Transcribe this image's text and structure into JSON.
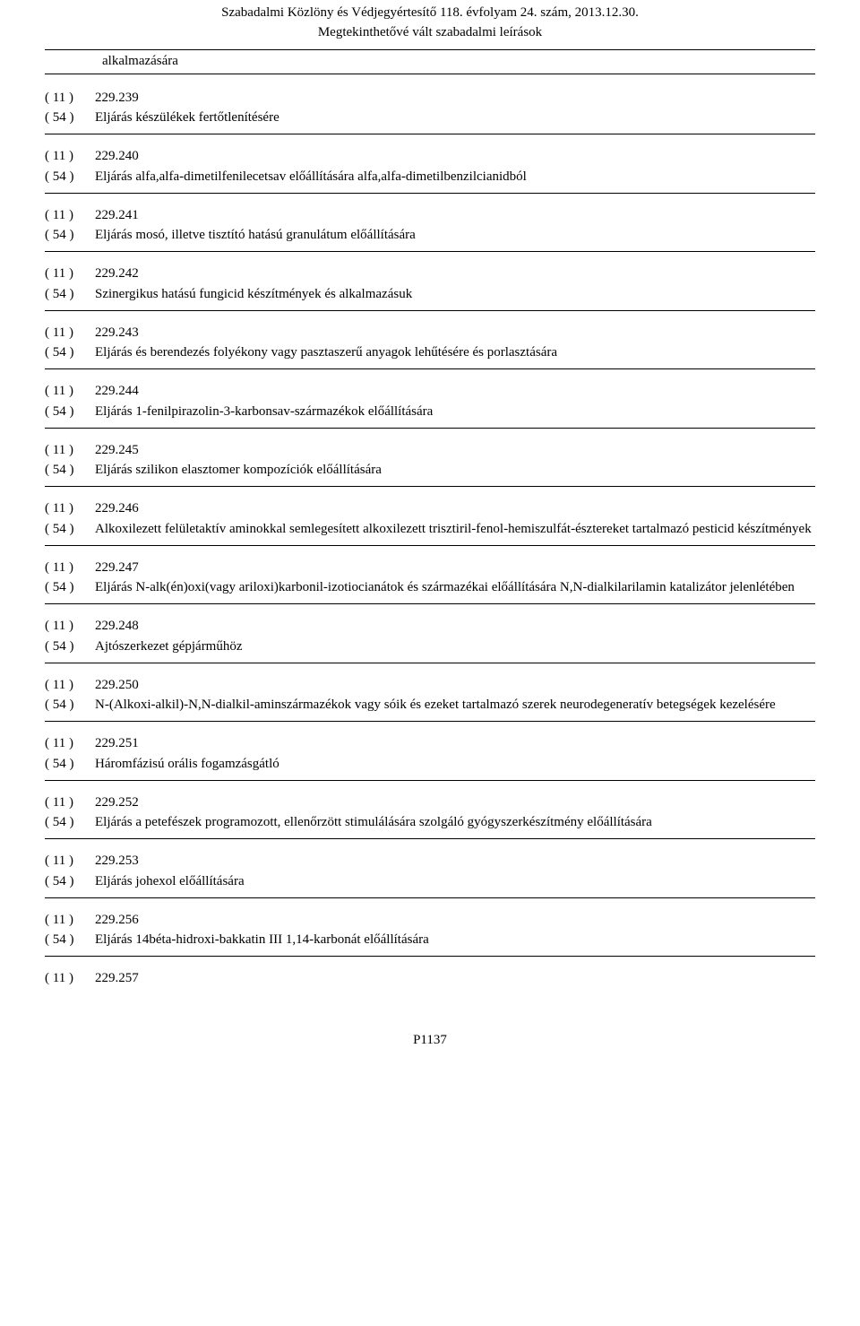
{
  "header": {
    "title": "Szabadalmi Közlöny és Védjegyértesítő 118. évfolyam 24. szám, 2013.12.30.",
    "subtitle": "Megtekinthetővé vált szabadalmi leírások"
  },
  "orphan_tail": "alkalmazására",
  "codes": {
    "c11": "( 11 )",
    "c54": "( 54 )"
  },
  "entries": [
    {
      "num": "229.239",
      "title": "Eljárás készülékek fertőtlenítésére"
    },
    {
      "num": "229.240",
      "title": "Eljárás alfa,alfa-dimetilfenilecetsav előállítására alfa,alfa-dimetilbenzilcianidból"
    },
    {
      "num": "229.241",
      "title": "Eljárás mosó, illetve tisztító hatású granulátum előállítására"
    },
    {
      "num": "229.242",
      "title": "Szinergikus hatású fungicid készítmények és alkalmazásuk"
    },
    {
      "num": "229.243",
      "title": "Eljárás és berendezés folyékony vagy pasztaszerű anyagok lehűtésére és porlasztására"
    },
    {
      "num": "229.244",
      "title": "Eljárás 1-fenilpirazolin-3-karbonsav-származékok előállítására"
    },
    {
      "num": "229.245",
      "title": "Eljárás szilikon elasztomer kompozíciók előállítására"
    },
    {
      "num": "229.246",
      "title": "Alkoxilezett felületaktív aminokkal semlegesített alkoxilezett trisztiril-fenol-hemiszulfát-észtereket tartalmazó pesticid készítmények"
    },
    {
      "num": "229.247",
      "title": "Eljárás N-alk(én)oxi(vagy ariloxi)karbonil-izotiocianátok és származékai előállítására N,N-dialkilarilamin katalizátor jelenlétében"
    },
    {
      "num": "229.248",
      "title": "Ajtószerkezet gépjárműhöz"
    },
    {
      "num": "229.250",
      "title": "N-(Alkoxi-alkil)-N,N-dialkil-aminszármazékok vagy sóik és ezeket tartalmazó szerek neurodegeneratív betegségek kezelésére"
    },
    {
      "num": "229.251",
      "title": "Háromfázisú orális fogamzásgátló"
    },
    {
      "num": "229.252",
      "title": "Eljárás a petefészek programozott, ellenőrzött stimulálására szolgáló gyógyszerkészítmény előállítására"
    },
    {
      "num": "229.253",
      "title": "Eljárás johexol előállítására"
    },
    {
      "num": "229.256",
      "title": "Eljárás 14béta-hidroxi-bakkatin III 1,14-karbonát előállítására"
    }
  ],
  "trailing_num": "229.257",
  "footer": "P1137"
}
